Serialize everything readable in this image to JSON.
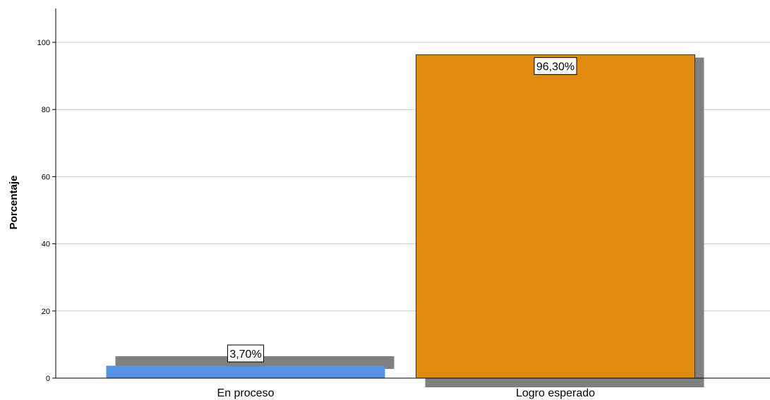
{
  "chart_data": {
    "type": "bar",
    "title": "",
    "xlabel": "",
    "ylabel": "Porcentaje",
    "ylim": [
      0,
      110
    ],
    "yticks": [
      0,
      20,
      40,
      60,
      80,
      100
    ],
    "grid": true,
    "categories": [
      "En proceso",
      "Logro esperado"
    ],
    "values": [
      3.7,
      96.3
    ],
    "data_labels": [
      "3,70%",
      "96,30%"
    ],
    "colors": [
      "#5591e3",
      "#e08a10"
    ],
    "shadow_color": "#808080",
    "gridline_color": "#c8c8c8"
  }
}
